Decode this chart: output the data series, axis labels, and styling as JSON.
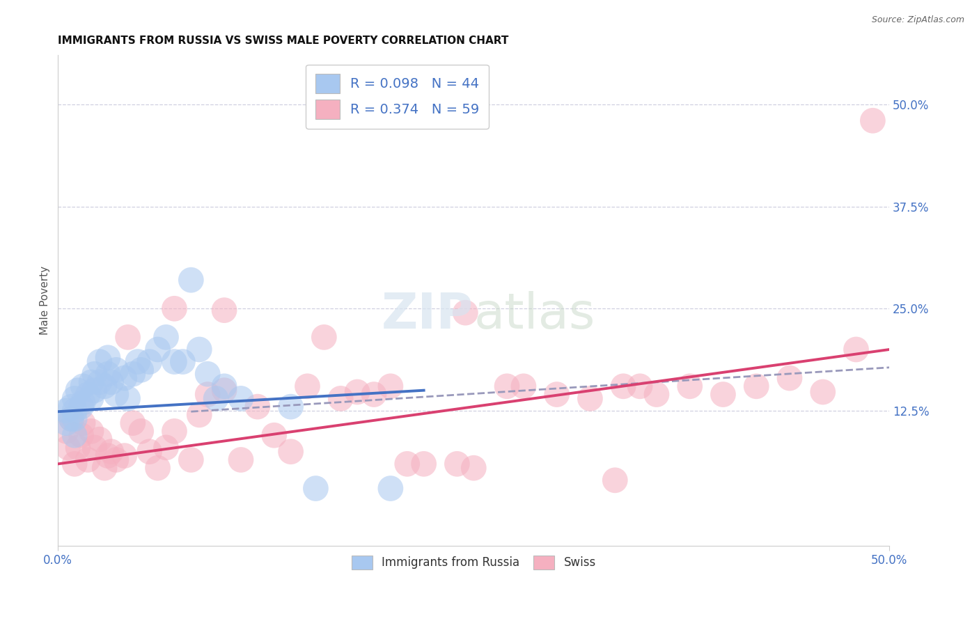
{
  "title": "IMMIGRANTS FROM RUSSIA VS SWISS MALE POVERTY CORRELATION CHART",
  "source": "Source: ZipAtlas.com",
  "ylabel": "Male Poverty",
  "ytick_labels": [
    "12.5%",
    "25.0%",
    "37.5%",
    "50.0%"
  ],
  "ytick_values": [
    0.125,
    0.25,
    0.375,
    0.5
  ],
  "xlim": [
    0.0,
    0.5
  ],
  "ylim": [
    -0.04,
    0.56
  ],
  "legend_entry1": "R = 0.098   N = 44",
  "legend_entry2": "R = 0.374   N = 59",
  "legend_label1": "Immigrants from Russia",
  "legend_label2": "Swiss",
  "color_blue": "#A8C8F0",
  "color_pink": "#F5B0C0",
  "color_blue_text": "#4472C4",
  "line_blue": "#4472C4",
  "line_pink": "#D94070",
  "line_dashed": "#9999BB",
  "background": "#FFFFFF",
  "grid_color": "#D0D0E0",
  "blue_points_x": [
    0.005,
    0.005,
    0.008,
    0.008,
    0.01,
    0.01,
    0.01,
    0.01,
    0.012,
    0.014,
    0.015,
    0.015,
    0.018,
    0.02,
    0.02,
    0.022,
    0.022,
    0.025,
    0.025,
    0.028,
    0.03,
    0.03,
    0.032,
    0.035,
    0.035,
    0.04,
    0.042,
    0.045,
    0.048,
    0.05,
    0.055,
    0.06,
    0.065,
    0.07,
    0.075,
    0.08,
    0.085,
    0.09,
    0.095,
    0.1,
    0.11,
    0.14,
    0.155,
    0.2
  ],
  "blue_points_y": [
    0.125,
    0.11,
    0.13,
    0.115,
    0.14,
    0.125,
    0.115,
    0.095,
    0.15,
    0.13,
    0.155,
    0.135,
    0.145,
    0.16,
    0.14,
    0.17,
    0.15,
    0.185,
    0.16,
    0.155,
    0.19,
    0.17,
    0.16,
    0.175,
    0.145,
    0.165,
    0.14,
    0.17,
    0.185,
    0.175,
    0.185,
    0.2,
    0.215,
    0.185,
    0.185,
    0.285,
    0.2,
    0.17,
    0.14,
    0.155,
    0.14,
    0.13,
    0.03,
    0.03
  ],
  "pink_points_x": [
    0.005,
    0.006,
    0.008,
    0.01,
    0.012,
    0.014,
    0.015,
    0.018,
    0.02,
    0.022,
    0.025,
    0.028,
    0.03,
    0.032,
    0.035,
    0.04,
    0.042,
    0.045,
    0.05,
    0.055,
    0.06,
    0.065,
    0.07,
    0.08,
    0.085,
    0.09,
    0.1,
    0.11,
    0.12,
    0.13,
    0.14,
    0.15,
    0.16,
    0.17,
    0.18,
    0.19,
    0.2,
    0.21,
    0.22,
    0.24,
    0.25,
    0.27,
    0.28,
    0.3,
    0.32,
    0.34,
    0.36,
    0.38,
    0.4,
    0.42,
    0.44,
    0.46,
    0.48,
    0.49,
    0.335,
    0.35,
    0.245,
    0.07,
    0.1
  ],
  "pink_points_y": [
    0.1,
    0.08,
    0.115,
    0.06,
    0.08,
    0.095,
    0.11,
    0.065,
    0.1,
    0.08,
    0.09,
    0.055,
    0.07,
    0.075,
    0.065,
    0.07,
    0.215,
    0.11,
    0.1,
    0.075,
    0.055,
    0.08,
    0.1,
    0.065,
    0.12,
    0.145,
    0.15,
    0.065,
    0.13,
    0.095,
    0.075,
    0.155,
    0.215,
    0.14,
    0.148,
    0.145,
    0.155,
    0.06,
    0.06,
    0.06,
    0.055,
    0.155,
    0.155,
    0.145,
    0.14,
    0.155,
    0.145,
    0.155,
    0.145,
    0.155,
    0.165,
    0.148,
    0.2,
    0.48,
    0.04,
    0.155,
    0.245,
    0.25,
    0.248
  ],
  "blue_line_x": [
    0.0,
    0.22
  ],
  "blue_line_y": [
    0.124,
    0.15
  ],
  "pink_line_x": [
    0.0,
    0.5
  ],
  "pink_line_y": [
    0.06,
    0.2
  ],
  "dashed_line_x": [
    0.08,
    0.5
  ],
  "dashed_line_y": [
    0.124,
    0.178
  ]
}
